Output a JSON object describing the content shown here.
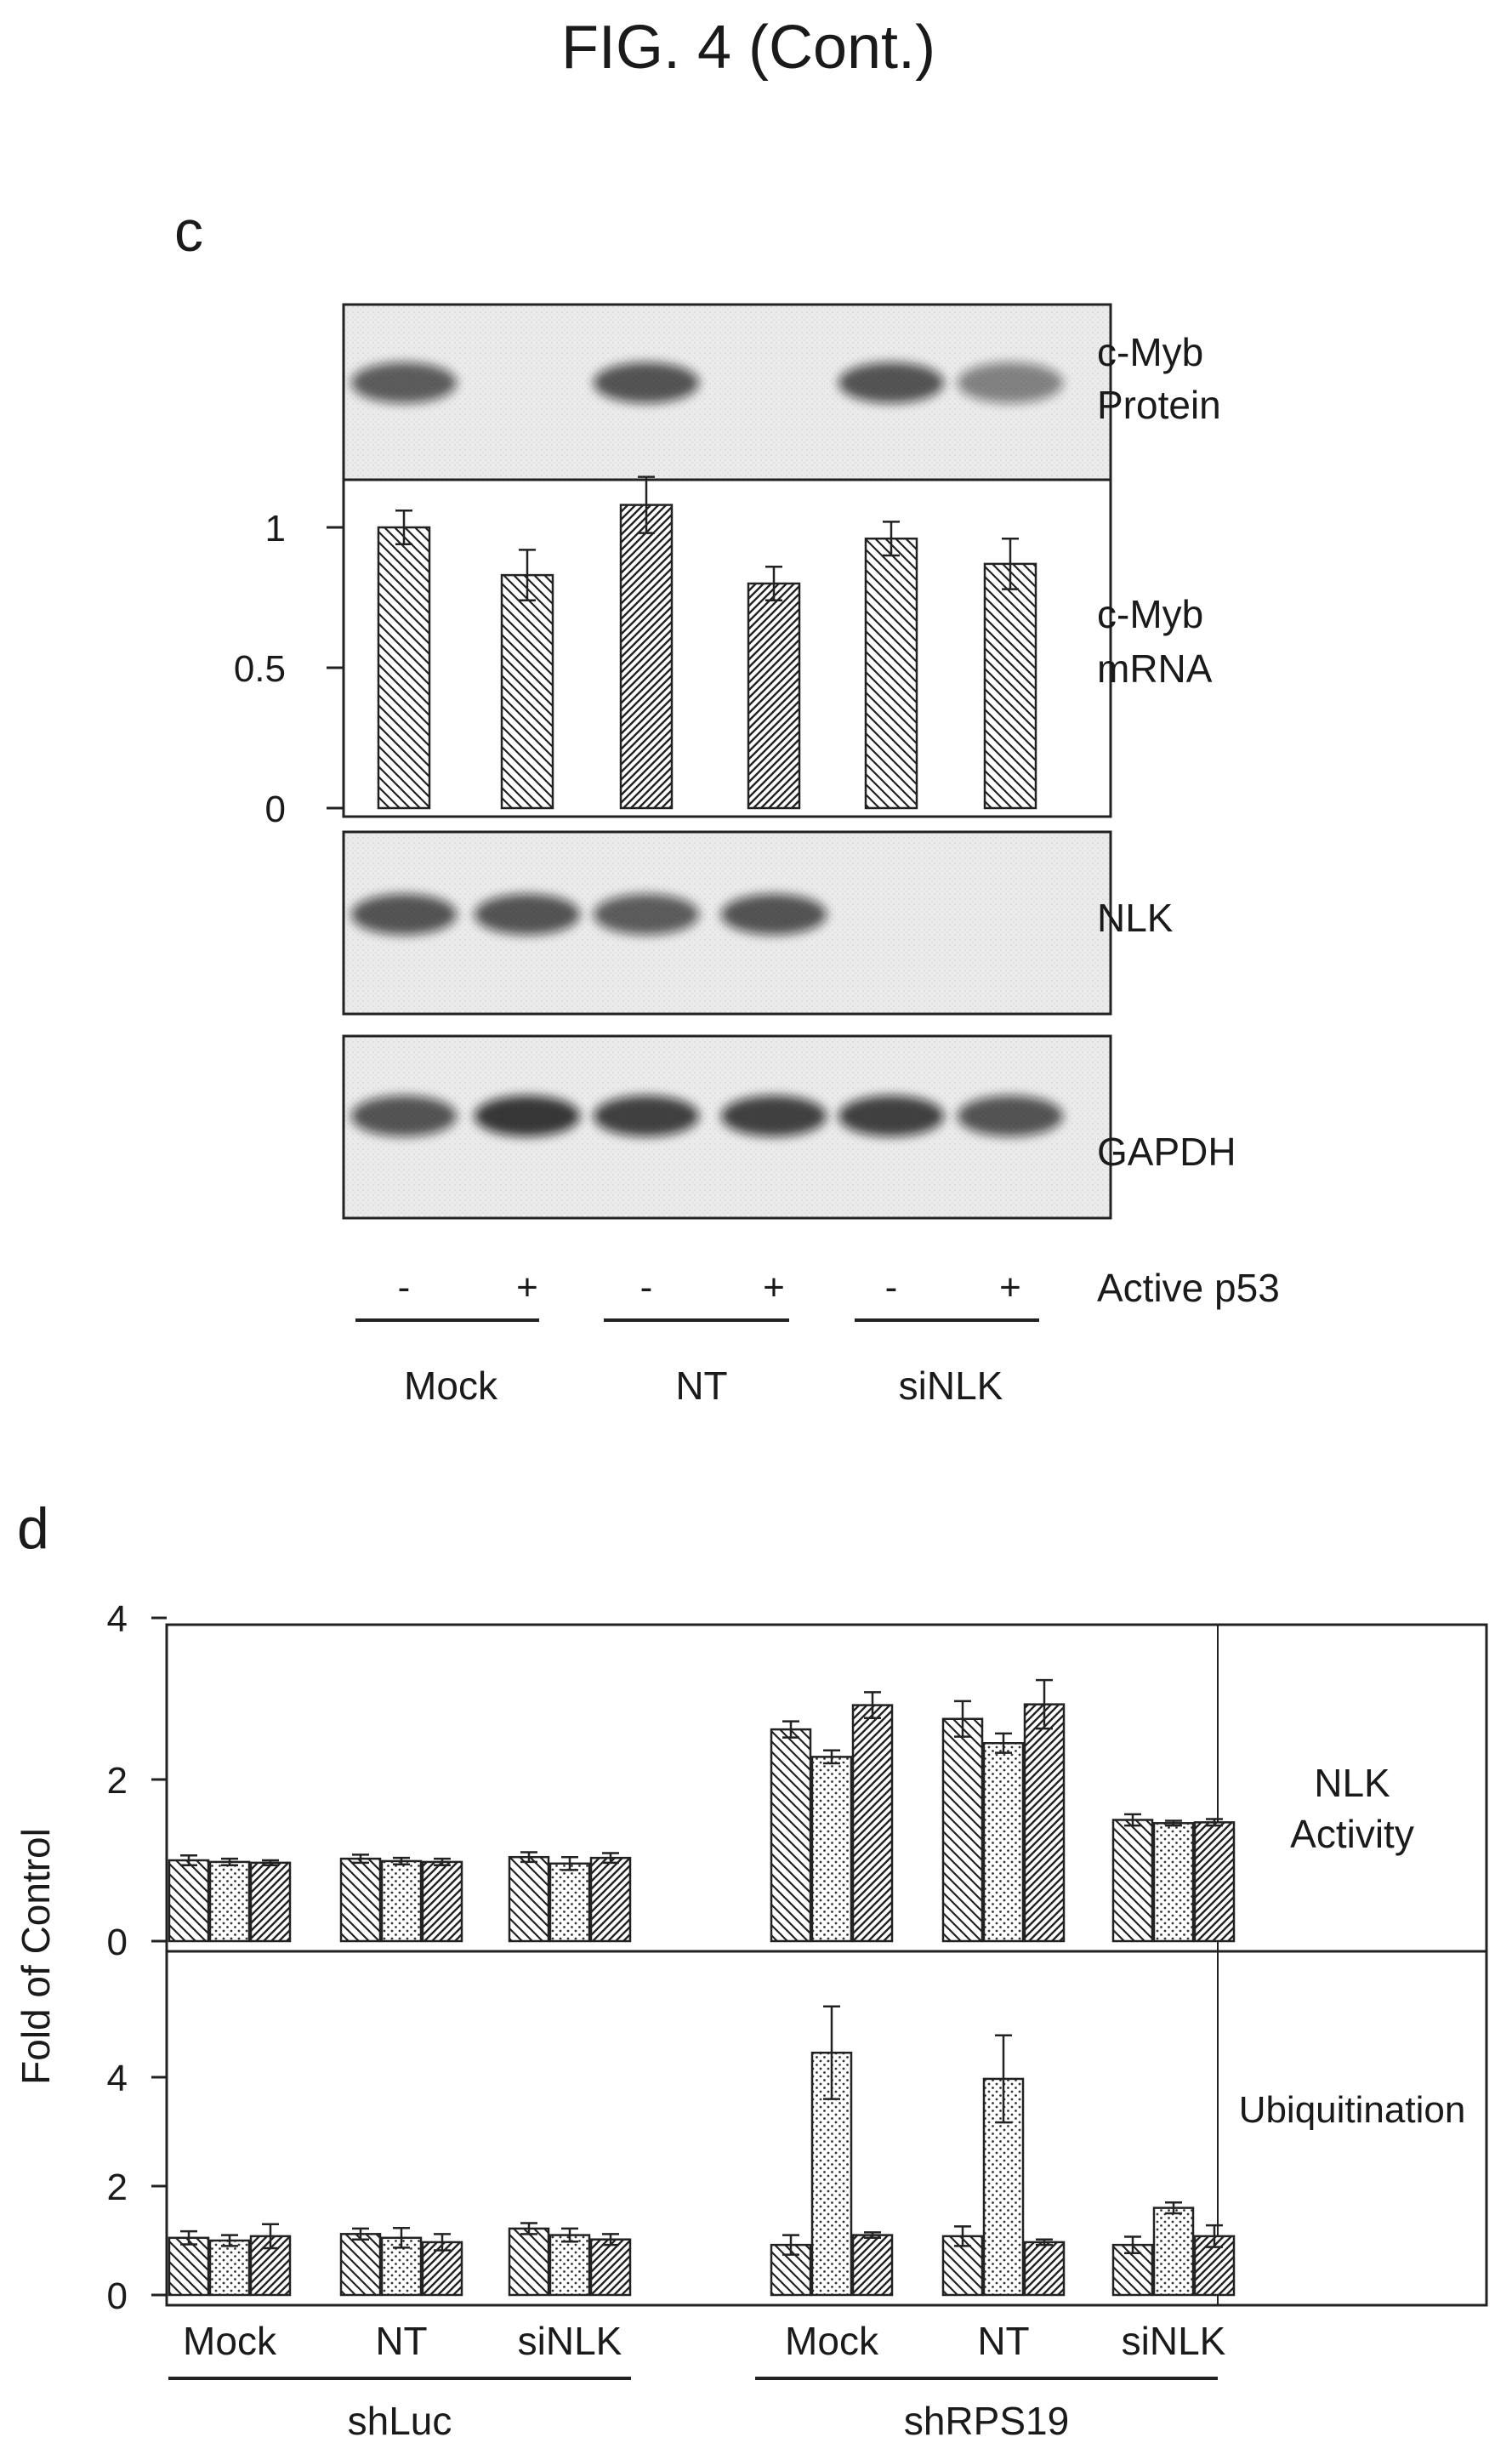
{
  "figure": {
    "title": "FIG. 4 (Cont.)"
  },
  "panel_c": {
    "letter": "c",
    "blot_labels": {
      "cmyb_protein": [
        "c-Myb",
        "Protein"
      ],
      "cmyb_mrna": [
        "c-Myb",
        "mRNA"
      ],
      "nlk": "NLK",
      "gapdh": "GAPDH"
    },
    "p53_signs": [
      "-",
      "+",
      "-",
      "+",
      "-",
      "+"
    ],
    "p53_label": "Active p53",
    "groups": [
      "Mock",
      "NT",
      "siNLK"
    ],
    "band_intensity": {
      "cmyb_protein": [
        0.75,
        0.0,
        0.8,
        0.0,
        0.8,
        0.55
      ],
      "nlk": [
        0.8,
        0.8,
        0.75,
        0.8,
        0.0,
        0.0
      ],
      "gapdh": [
        0.8,
        0.95,
        0.9,
        0.9,
        0.9,
        0.8
      ]
    }
  },
  "panel_d": {
    "letter": "d",
    "ylabel": "Fold of Control",
    "row_labels": {
      "nlk_activity": [
        "NLK",
        "Activity"
      ],
      "ubiquitination": "Ubiquitination"
    },
    "groups": [
      "Mock",
      "NT",
      "siNLK",
      "Mock",
      "NT",
      "siNLK"
    ],
    "super_groups": [
      "shLuc",
      "shRPS19"
    ]
  },
  "chart_data": [
    {
      "type": "bar",
      "panel": "c",
      "title": "",
      "ylabel": "",
      "xlabel": "Active p53",
      "categories": [
        "Mock -",
        "Mock +",
        "NT -",
        "NT +",
        "siNLK -",
        "siNLK +"
      ],
      "values": [
        1.0,
        0.83,
        1.08,
        0.8,
        0.96,
        0.87
      ],
      "errors": [
        0.06,
        0.09,
        0.1,
        0.06,
        0.06,
        0.09
      ],
      "ylim": [
        0,
        1.1
      ],
      "yticks": [
        "0",
        "0.5",
        "1"
      ],
      "ytick_values": [
        0,
        0.5,
        1
      ],
      "grid": false
    },
    {
      "type": "bar",
      "panel": "d",
      "title": "",
      "ylabel": "Fold of Control",
      "ylim": [
        0,
        4
      ],
      "yticks": [
        "0",
        "2",
        "4"
      ],
      "ytick_values": [
        0,
        2,
        4
      ],
      "categories": [
        "Mock",
        "NT",
        "siNLK",
        "Mock",
        "NT",
        "siNLK"
      ],
      "series": [
        {
          "values": [
            1.0,
            1.02,
            1.04,
            2.62,
            2.75,
            1.5
          ],
          "errors": [
            0.06,
            0.05,
            0.06,
            0.1,
            0.22,
            0.07
          ]
        },
        {
          "values": [
            0.98,
            0.99,
            0.96,
            2.28,
            2.45,
            1.46
          ],
          "errors": [
            0.04,
            0.04,
            0.08,
            0.08,
            0.12,
            0.03
          ]
        },
        {
          "values": [
            0.97,
            0.98,
            1.03,
            2.92,
            2.93,
            1.47
          ],
          "errors": [
            0.03,
            0.04,
            0.06,
            0.16,
            0.3,
            0.04
          ]
        }
      ],
      "grid": false
    },
    {
      "type": "bar",
      "panel": "d",
      "title": "",
      "ylabel": "Fold of Control",
      "ylim": [
        0,
        5.5
      ],
      "yticks": [
        "0",
        "2",
        "4"
      ],
      "ytick_values": [
        0,
        2,
        4
      ],
      "categories": [
        "Mock",
        "NT",
        "siNLK",
        "Mock",
        "NT",
        "siNLK"
      ],
      "series": [
        {
          "values": [
            1.05,
            1.12,
            1.22,
            0.92,
            1.08,
            0.92
          ],
          "errors": [
            0.12,
            0.1,
            0.1,
            0.18,
            0.18,
            0.15
          ]
        },
        {
          "values": [
            1.0,
            1.05,
            1.1,
            4.45,
            3.97,
            1.6
          ],
          "errors": [
            0.1,
            0.18,
            0.12,
            0.85,
            0.8,
            0.1
          ]
        },
        {
          "values": [
            1.08,
            0.97,
            1.02,
            1.1,
            0.97,
            1.08
          ],
          "errors": [
            0.22,
            0.15,
            0.1,
            0.05,
            0.05,
            0.2
          ]
        }
      ],
      "grid": false
    }
  ]
}
